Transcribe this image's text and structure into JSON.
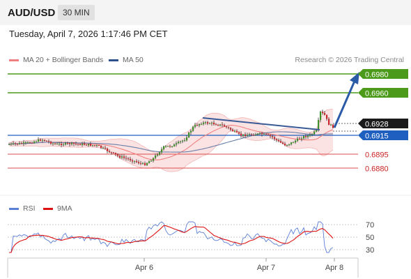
{
  "header": {
    "symbol": "AUD/USD",
    "interval": "30 MIN"
  },
  "datetime": "Tuesday, April 7, 2026 1:17:46 PM CET",
  "legend": {
    "ma20_label": "MA 20 + Bollinger Bands",
    "ma20_color": "#f08080",
    "ma50_label": "MA 50",
    "ma50_color": "#2d4f8c"
  },
  "credit": "Research © 2026 Trading Central",
  "levels": {
    "resistance_2": "0.6980",
    "resistance_1": "0.6960",
    "current": "0.6928",
    "pivot": "0.6915",
    "support_1": "0.6895",
    "support_2": "0.6880"
  },
  "colors": {
    "resistance": "#4c9a1a",
    "support": "#cc2222",
    "pivot": "#1e5fbf",
    "current": "#1a1a1a",
    "arrow": "#2b5aa7"
  },
  "rsi_legend": {
    "rsi_label": "RSI",
    "rsi_color": "#5b7fd6",
    "ma_label": "9MA",
    "ma_color": "#dd1111"
  },
  "rsi_axis": {
    "high": "70",
    "mid": "50",
    "low": "30"
  },
  "x_axis": {
    "tick1": "Apr 6",
    "tick2": "Apr 7",
    "tick3": "Apr 8"
  }
}
